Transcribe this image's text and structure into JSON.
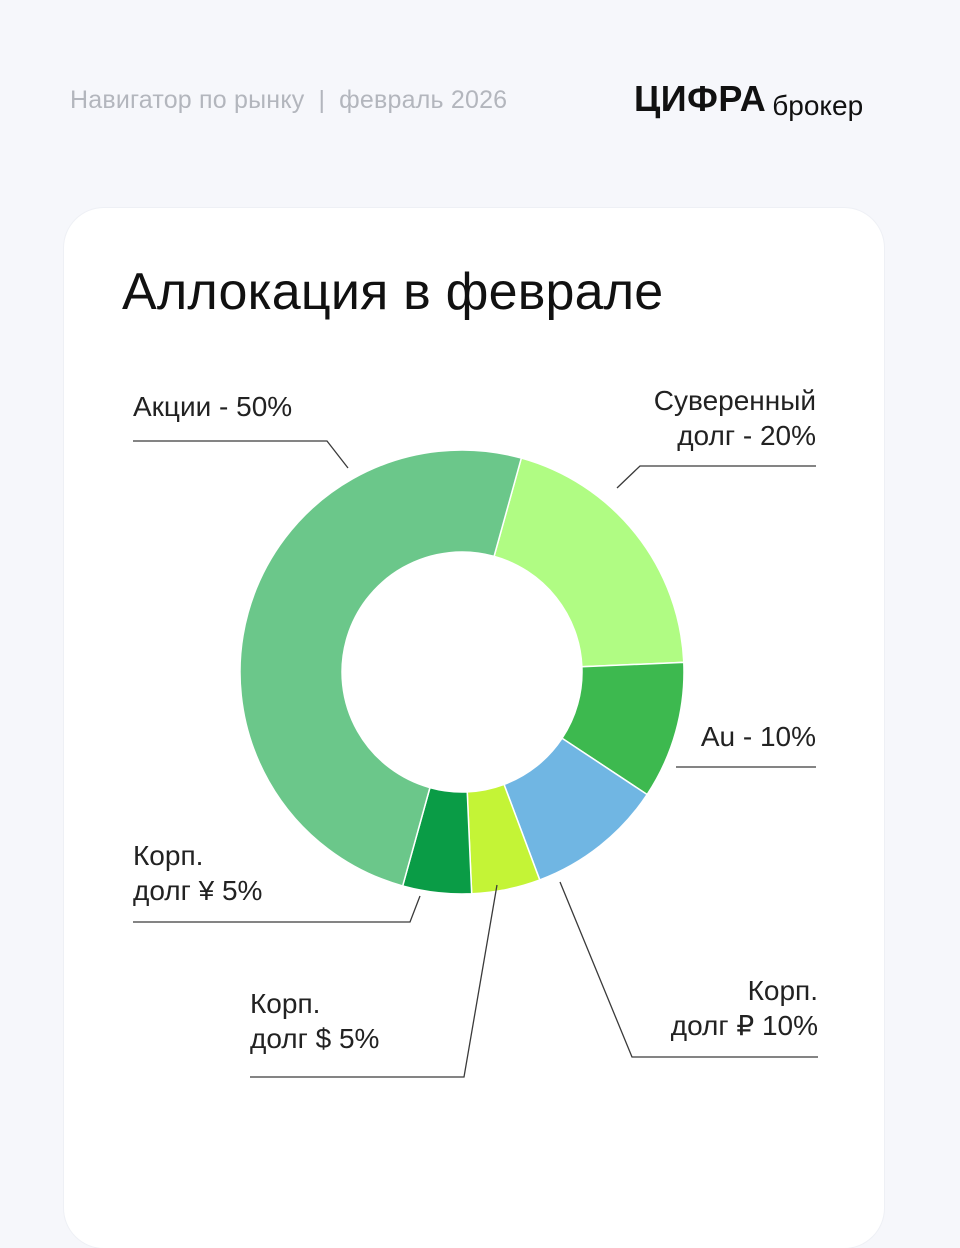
{
  "header": {
    "subtitle_left": "Навигатор по рынку",
    "separator": "|",
    "subtitle_right": "февраль 2026",
    "logo_brand": "ЦИФРА",
    "logo_sub": "брокер"
  },
  "chart_data": {
    "type": "pie",
    "title": "Аллокация в феврале",
    "hole": "donut",
    "slices": [
      {
        "name": "Суверенный долг",
        "value": 20,
        "color": "#b0fc83",
        "label_lines": [
          "Суверенный",
          "долг - 20%"
        ]
      },
      {
        "name": "Au",
        "value": 10,
        "color": "#3db94f",
        "label_lines": [
          "Au - 10%"
        ]
      },
      {
        "name": "Корп. долг ₽",
        "value": 10,
        "color": "#70b6e3",
        "label_lines": [
          "Корп.",
          "долг ₽ 10%"
        ]
      },
      {
        "name": "Корп. долг $",
        "value": 5,
        "color": "#c4f436",
        "label_lines": [
          "Корп.",
          "долг $ 5%"
        ]
      },
      {
        "name": "Корп. долг ¥",
        "value": 5,
        "color": "#0a9c46",
        "label_lines": [
          "Корп.",
          "долг ¥ 5%"
        ]
      },
      {
        "name": "Акции",
        "value": 50,
        "color": "#6bc78a",
        "label_lines": [
          "Акции - 50%"
        ]
      }
    ]
  }
}
